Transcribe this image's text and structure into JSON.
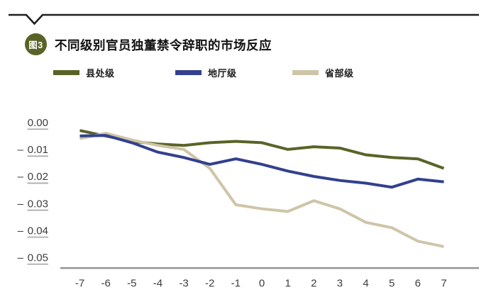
{
  "header": {
    "badge": "图3",
    "title": "不同级别官员独董禁令辞职的市场反应"
  },
  "colors": {
    "olive": "#5a6327",
    "blue": "#33408f",
    "tan": "#cec5a8",
    "rule": "#1f1f1f",
    "axis": "#9a9a9a",
    "tick_text": "#3d3d3d",
    "tick_underline": "#a9a9a9"
  },
  "chart_data": {
    "type": "line",
    "title": "不同级别官员独董禁令辞职的市场反应",
    "xlabel": "",
    "ylabel": "",
    "x": [
      -7,
      -6,
      -5,
      -4,
      -3,
      -2,
      -1,
      0,
      1,
      2,
      3,
      4,
      5,
      6,
      7
    ],
    "x_tick_labels": [
      "-7",
      "-6",
      "-5",
      "-4",
      "-3",
      "-2",
      "-1",
      "0",
      "1",
      "2",
      "3",
      "4",
      "5",
      "6",
      "7"
    ],
    "y_ticks": [
      "0.00",
      "-0.01",
      "-0.02",
      "-0.03",
      "-0.04",
      "-0.05"
    ],
    "ylim": [
      -0.052,
      0.002
    ],
    "grid": false,
    "legend_position": "top",
    "series": [
      {
        "name": "县处级",
        "color": "#5a6327",
        "values": [
          -0.003,
          -0.005,
          -0.007,
          -0.008,
          -0.0085,
          -0.0075,
          -0.007,
          -0.0075,
          -0.01,
          -0.009,
          -0.0095,
          -0.012,
          -0.013,
          -0.0135,
          -0.017
        ]
      },
      {
        "name": "地厅级",
        "color": "#33408f",
        "values": [
          -0.005,
          -0.0048,
          -0.0075,
          -0.011,
          -0.013,
          -0.0155,
          -0.0135,
          -0.0155,
          -0.018,
          -0.02,
          -0.0215,
          -0.0225,
          -0.024,
          -0.021,
          -0.022
        ]
      },
      {
        "name": "省部级",
        "color": "#cec5a8",
        "values": [
          -0.006,
          -0.004,
          -0.0065,
          -0.0085,
          -0.01,
          -0.017,
          -0.0305,
          -0.032,
          -0.033,
          -0.029,
          -0.032,
          -0.037,
          -0.039,
          -0.044,
          -0.046
        ]
      }
    ]
  }
}
